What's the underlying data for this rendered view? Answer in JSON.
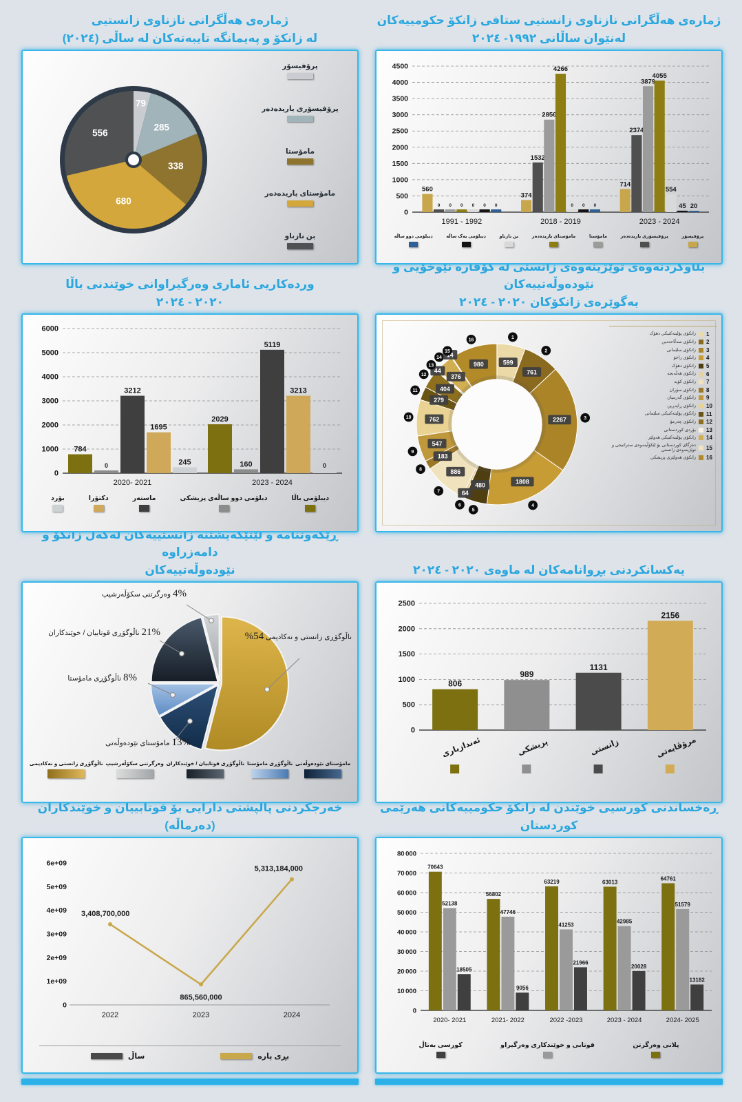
{
  "accent_color": "#2aa7df",
  "chart_data": [
    {
      "type": "pie",
      "title1": "ژمارەی هەڵگرانی نازناوی زانستیی",
      "title2": "لە زانکۆ و پەیمانگە تایبەتەکان لە ساڵی (٢٠٢٤)",
      "labels": [
        "پرۆفیسۆر",
        "پرۆفیسۆری یاریدەدەر",
        "مامۆستا",
        "مامۆستای یاریدەدەر",
        "بن نازناو"
      ],
      "values": [
        79,
        285,
        338,
        680,
        556
      ],
      "colors": [
        "#c9cdd1",
        "#a0b4b9",
        "#8f7430",
        "#d4a73c",
        "#4f5152"
      ],
      "ring_color": "#2e3a47"
    },
    {
      "type": "grouped_bar",
      "title1": "ژمارەی هەڵگرانی نازناوی زانستیی ستافی زانکۆ حکومییەکان",
      "title2": "لەنێوان ساڵانی ١٩٩٢- ٢٠٢٤",
      "categories": [
        "1991 - 1992",
        "2018 - 2019",
        "2023 - 2024"
      ],
      "series": [
        {
          "name": "پرۆفیسۆر",
          "color": "#c8a64b",
          "values": [
            560,
            374,
            714
          ]
        },
        {
          "name": "پرۆفیسۆری یاریدەدەر",
          "color": "#4f4f4f",
          "values": [
            0,
            1532,
            2374
          ]
        },
        {
          "name": "مامۆستا",
          "color": "#9b9b9b",
          "values": [
            0,
            2850,
            3879
          ]
        },
        {
          "name": "مامۆستای یاریدەدەر",
          "color": "#8d7d12",
          "values": [
            0,
            4266,
            4055
          ]
        },
        {
          "name": "بن نازناو",
          "color": "#d9d9d9",
          "values": [
            0,
            0,
            554
          ]
        },
        {
          "name": "دیبلۆمی یەک ساڵە",
          "color": "#141414",
          "values": [
            0,
            0,
            45
          ]
        },
        {
          "name": "دیبلۆمی دوو ساڵە",
          "color": "#2d6096",
          "values": [
            0,
            0,
            20
          ]
        }
      ],
      "ylim": [
        0,
        4500
      ],
      "ystep": 500
    },
    {
      "type": "grouped_bar",
      "title1": "وردەکاریی ئاماری وەرگیراوانی خوێندنی باڵا",
      "title2": "٢٠٢٠ - ٢٠٢٤",
      "categories": [
        "2020- 2021",
        "2023 - 2024"
      ],
      "series": [
        {
          "name": "دیبلۆمی باڵا",
          "color": "#7c7010",
          "values": [
            784,
            2029
          ]
        },
        {
          "name": "دبلۆمی دوو ساڵەی پزیشکی",
          "color": "#8c8c8c",
          "values": [
            0,
            160
          ]
        },
        {
          "name": "ماستەر",
          "color": "#3f3f3f",
          "values": [
            3212,
            5119
          ]
        },
        {
          "name": "دکتۆرا",
          "color": "#cfa959",
          "values": [
            1695,
            3213
          ]
        },
        {
          "name": "بۆرد",
          "color": "#ced1d3",
          "values": [
            245,
            0
          ]
        }
      ],
      "ylim": [
        0,
        6000
      ],
      "ystep": 1000
    },
    {
      "type": "donut",
      "title1": "بڵاوکردنەوەی توێژینەوەی زانستی لە گۆڤارە نێوخۆیی و نێودەوڵەتییەکان",
      "title2": "بەگوێرەی زانکۆکان ٢٠٢٠ - ٢٠٢٤",
      "items": [
        {
          "n": 1,
          "name": "زانکۆی پۆلیتەکنیکی دهۆک",
          "value": 599,
          "color": "#ecd9a8"
        },
        {
          "n": 2,
          "name": "زانکۆی سەڵاحەدین",
          "value": 761,
          "color": "#8a6a1e"
        },
        {
          "n": 3,
          "name": "زانکۆی سلێمانی",
          "value": 2267,
          "color": "#ab8428"
        },
        {
          "n": 4,
          "name": "زانکۆی زاخۆ",
          "value": 1808,
          "color": "#c89c34"
        },
        {
          "n": 5,
          "name": "زانکۆی دهۆک",
          "value": 480,
          "color": "#4f3f10"
        },
        {
          "n": 6,
          "name": "زانکۆی هەڵەبجە",
          "value": 64,
          "color": "#e4d2a0"
        },
        {
          "n": 7,
          "name": "زانکۆی کۆیە",
          "value": 886,
          "color": "#f0e2bc"
        },
        {
          "n": 8,
          "name": "زانکۆی سۆران",
          "value": 183,
          "color": "#9a7828"
        },
        {
          "n": 9,
          "name": "زانکۆی گەرمیان",
          "value": 547,
          "color": "#bf983c"
        },
        {
          "n": 10,
          "name": "زانکۆی ڕاپەڕین",
          "value": 762,
          "color": "#e9d292"
        },
        {
          "n": 11,
          "name": "زانکۆی پۆلیتەکنیکی سلێمانی",
          "value": 279,
          "color": "#6a5414"
        },
        {
          "n": 12,
          "name": "زانکۆی چەرمۆ",
          "value": 404,
          "color": "#8d6f1e"
        },
        {
          "n": 13,
          "name": "بۆردی کوردستانی",
          "value": 44,
          "color": "#f7f2e2"
        },
        {
          "n": 14,
          "name": "زانکۆی پۆلیتەکنیکی هەولێر",
          "value": 376,
          "color": "#d2ae52"
        },
        {
          "n": 15,
          "name": "دەزگای کوردستانی بۆ لێکۆڵینەوەی ستراتیجی و توێژینەوەی زانستی",
          "value": 14,
          "color": "#efe3c0"
        },
        {
          "n": 16,
          "name": "زانکۆی هەولێری پزیشکی",
          "value": 980,
          "color": "#b28a28"
        }
      ]
    },
    {
      "type": "pie_exploded",
      "title1": "ڕێکەوتنامە و لێتێگەیشتنە زانستییەکان لەگەڵ زانکۆ و دامەزراوە",
      "title2": "نێودەوڵەتییەکان",
      "slices": [
        {
          "name": "ناڵوگۆڕی زانستی و نەکادیمی",
          "pct": 54,
          "color1": "#ddb54b",
          "color2": "#b08a24",
          "pct_first": false
        },
        {
          "name": "مامۆستای نێودەوڵەتی",
          "pct": 13,
          "color1": "#2d4f76",
          "color2": "#122c49",
          "pct_first": true
        },
        {
          "name": "ناڵوگۆڕی مامۆستا",
          "pct": 8,
          "color1": "#a3c0e4",
          "color2": "#5d8cc4",
          "pct_first": true
        },
        {
          "name": "ناڵوگۆڕی قوتابیان / خوێندکاران",
          "pct": 21,
          "color1": "#4a5a6c",
          "color2": "#161d26",
          "pct_first": true
        },
        {
          "name": "وەرگرتنی سکۆڵەرشیپ",
          "pct": 4,
          "color1": "#d2d5d7",
          "color2": "#9fa3a6",
          "pct_first": true
        }
      ],
      "legend": [
        {
          "label": "مامۆستای نێودەوڵەتی",
          "g1": "#0e2238",
          "g2": "#46688e"
        },
        {
          "label": "ناڵوگۆڕی مامۆستا",
          "g1": "#bdd2ec",
          "g2": "#4a7ab2"
        },
        {
          "label": "ناڵوگۆڕی قوتابیان / خوێندکاران",
          "g1": "#182028",
          "g2": "#5a6570"
        },
        {
          "label": "وەرگرتنی سکۆڵەرشیپ",
          "g1": "#dcdcdc",
          "g2": "#a2a6a9"
        },
        {
          "label": "ناڵوگۆڕی زانستی و نەکادیمی",
          "g1": "#8f6f1c",
          "g2": "#e0b85c"
        }
      ]
    },
    {
      "type": "bar",
      "title1": "یەکسانکردنی بڕوانامەکان لە ماوەی ٢٠٢٠ - ٢٠٢٤",
      "categories": [
        "ئەندازیاری",
        "پزیشکی",
        "زانستی",
        "مرۆڤایەتی"
      ],
      "values": [
        806,
        989,
        1131,
        2156
      ],
      "colors": [
        "#7c7010",
        "#8f8f8f",
        "#4b4b4b",
        "#d2ab56"
      ],
      "ylim": [
        0,
        2500
      ],
      "ystep": 500
    },
    {
      "type": "line",
      "title1": "خەرجکردنی پاڵپشتی دارایی بۆ قوتابییان و خوێندکاران (دەرماڵە)",
      "x": [
        "2022",
        "2023",
        "2024"
      ],
      "values": [
        3408700000,
        865560000,
        5313184000
      ],
      "point_labels": [
        "3,408,700,000",
        "865,560,000",
        "5,313,184,000"
      ],
      "y_ticks": [
        "0",
        "1e+09",
        "2e+09",
        "3e+09",
        "4e+09",
        "5e+09",
        "6e+09"
      ],
      "ymax": 6000000000,
      "line_color": "#c9a84c",
      "legend": [
        {
          "label": "ساڵ",
          "color": "#4a4a4a"
        },
        {
          "label": "بڕی پارە",
          "color": "#c9a84c"
        }
      ]
    },
    {
      "type": "grouped_bar",
      "title1": "ڕەخساندنی کورسیی خوێندن لە زانکۆ حکومییەکانی هەرێمی کوردستان",
      "categories": [
        "2020- 2021",
        "2021- 2022",
        "2022 -2023",
        "2023 - 2024",
        "2024- 2025"
      ],
      "series": [
        {
          "name": "پلانی وەرگرتن",
          "color": "#7c7010",
          "values": [
            70643,
            56802,
            63219,
            63013,
            64761
          ]
        },
        {
          "name": "قوتابی و خوێندکاری وەرگیراو",
          "color": "#9a9a9a",
          "values": [
            52138,
            47746,
            41253,
            42985,
            51579
          ]
        },
        {
          "name": "کورسی بەتاڵ",
          "color": "#3f3f3f",
          "values": [
            18505,
            9056,
            21966,
            20028,
            13182
          ]
        }
      ],
      "ylim": [
        0,
        80000
      ],
      "ystep": 10000,
      "yspace": true
    }
  ]
}
